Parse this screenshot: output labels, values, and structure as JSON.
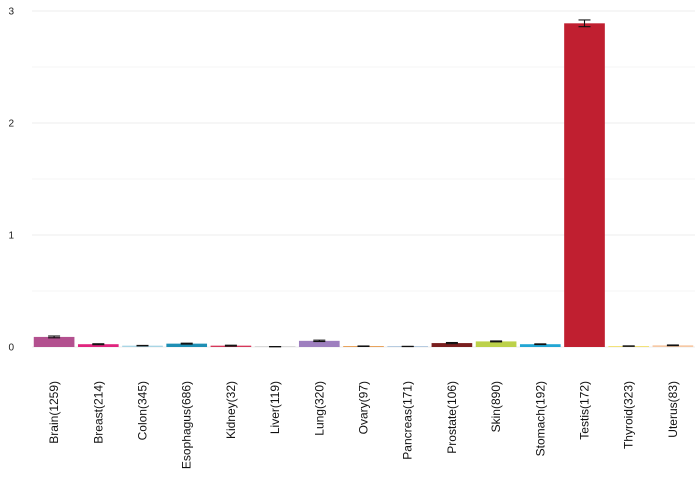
{
  "chart_data": {
    "type": "bar",
    "categories": [
      "Brain(1259)",
      "Breast(214)",
      "Colon(345)",
      "Esophagus(686)",
      "Kidney(32)",
      "Liver(119)",
      "Lung(320)",
      "Ovary(97)",
      "Pancreas(171)",
      "Prostate(106)",
      "Skin(890)",
      "Stomach(192)",
      "Testis(172)",
      "Thyroid(323)",
      "Uterus(83)"
    ],
    "values": [
      0.09,
      0.025,
      0.012,
      0.03,
      0.012,
      0.003,
      0.055,
      0.007,
      0.005,
      0.035,
      0.05,
      0.025,
      2.89,
      0.008,
      0.015
    ],
    "errors": [
      0.008,
      0.004,
      0.002,
      0.004,
      0.004,
      0.001,
      0.006,
      0.002,
      0.001,
      0.005,
      0.004,
      0.003,
      0.03,
      0.002,
      0.003
    ],
    "colors": [
      "#b3508f",
      "#e0257e",
      "#a9d6e5",
      "#1e8fb4",
      "#d6385a",
      "#d9d9d9",
      "#9e7fbf",
      "#e8a45e",
      "#b6cbe0",
      "#7a1f1f",
      "#bcd14a",
      "#22a6d4",
      "#c01f30",
      "#f2e27a",
      "#f6c9a5"
    ],
    "yticks": [
      0,
      1,
      2,
      3
    ],
    "ylim": [
      0,
      3.1
    ],
    "grid": true,
    "legend": "none"
  }
}
